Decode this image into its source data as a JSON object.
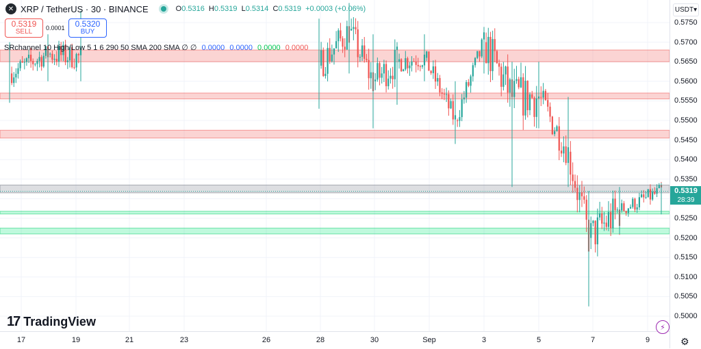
{
  "header": {
    "symbol_logo": "✕",
    "title": "XRP / TetherUS · 30 · BINANCE",
    "open_label": "O",
    "open": "0.5316",
    "high_label": "H",
    "high": "0.5319",
    "low_label": "L",
    "low": "0.5314",
    "close_label": "C",
    "close": "0.5319",
    "change": "+0.0003 (+0.06%)"
  },
  "trade": {
    "sell_price": "0.5319",
    "sell_label": "SELL",
    "spread": "0.0001",
    "buy_price": "0.5320",
    "buy_label": "BUY"
  },
  "indicator": {
    "name": "SRchannel 10 High/Low 5 1 6 290 50 SMA 200 SMA",
    "args": "∅ ∅",
    "v1": "0.0000",
    "v2": "0.0000",
    "v3": "0.0000",
    "v4": "0.0000",
    "colors": {
      "v1": "#2962ff",
      "v2": "#2962ff",
      "v3": "#00c853",
      "v4": "#ef5350"
    }
  },
  "price_axis": {
    "currency": "USDT",
    "ticks": [
      "0.5750",
      "0.5700",
      "0.5650",
      "0.5600",
      "0.5550",
      "0.5500",
      "0.5450",
      "0.5400",
      "0.5350",
      "0.5250",
      "0.5200",
      "0.5150",
      "0.5100",
      "0.5050",
      "0.5000"
    ],
    "last_price": "0.5319",
    "countdown": "28:39"
  },
  "time_axis": {
    "ticks": [
      "17",
      "19",
      "21",
      "23",
      "26",
      "28",
      "30",
      "Sep",
      "3",
      "5",
      "7",
      "9"
    ]
  },
  "branding": {
    "logo_mark": "17",
    "name": "TradingView"
  },
  "colors": {
    "up": "#26a69a",
    "down": "#ef5350",
    "resistance_band": "#ef5350",
    "support_band": "#00e676"
  },
  "chart_data": {
    "type": "candlestick",
    "symbol": "XRP / TetherUS",
    "interval": "30",
    "exchange": "BINANCE",
    "ylim": [
      0.498,
      0.5785
    ],
    "x_ticks": [
      "17",
      "19",
      "21",
      "23",
      "26",
      "28",
      "30",
      "Sep",
      "3",
      "5",
      "7",
      "9"
    ],
    "resistance_zones": [
      [
        0.565,
        0.568
      ],
      [
        0.5555,
        0.557
      ],
      [
        0.5455,
        0.5475
      ]
    ],
    "current_price_zone": [
      0.5315,
      0.5335
    ],
    "support_zones": [
      [
        0.5262,
        0.5268
      ],
      [
        0.521,
        0.5225
      ]
    ],
    "close_path": [
      {
        "x": "17",
        "y": 0.562,
        "low": 0.5545,
        "high": 0.57
      },
      {
        "x": "18",
        "y": 0.567,
        "low": 0.56,
        "high": 0.572
      },
      {
        "x": "19",
        "y": 0.566,
        "low": 0.56,
        "high": 0.578
      },
      {
        "x": "28",
        "y": 0.564,
        "low": 0.553,
        "high": 0.576
      },
      {
        "x": "29",
        "y": 0.573,
        "low": 0.562,
        "high": 0.58
      },
      {
        "x": "30",
        "y": 0.56,
        "low": 0.548,
        "high": 0.572
      },
      {
        "x": "31",
        "y": 0.565,
        "low": 0.554,
        "high": 0.57
      },
      {
        "x": "Sep",
        "y": 0.566,
        "low": 0.56,
        "high": 0.572
      },
      {
        "x": "2",
        "y": 0.55,
        "low": 0.544,
        "high": 0.56
      },
      {
        "x": "3",
        "y": 0.57,
        "low": 0.562,
        "high": 0.573
      },
      {
        "x": "4",
        "y": 0.556,
        "low": 0.533,
        "high": 0.565
      },
      {
        "x": "5",
        "y": 0.556,
        "low": 0.548,
        "high": 0.565
      },
      {
        "x": "6",
        "y": 0.542,
        "low": 0.533,
        "high": 0.556
      },
      {
        "x": "7",
        "y": 0.52,
        "low": 0.5025,
        "high": 0.532
      },
      {
        "x": "8",
        "y": 0.527,
        "low": 0.521,
        "high": 0.533
      },
      {
        "x": "9",
        "y": 0.5319,
        "low": 0.526,
        "high": 0.534
      }
    ]
  }
}
